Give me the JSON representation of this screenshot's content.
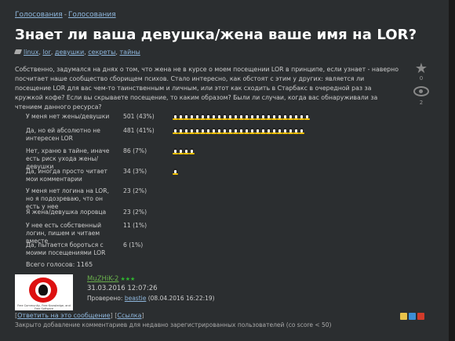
{
  "breadcrumb": {
    "first": "Голосования",
    "separator": "-",
    "second": "Голосования"
  },
  "title": "Знает ли ваша девушка/жена ваше имя на LOR?",
  "tags": [
    "linux",
    "lor",
    "девушки",
    "секреты",
    "тайны"
  ],
  "tag_separators": [
    ", ",
    ", ",
    ", ",
    ", "
  ],
  "body": "Собственно, задумался на днях о том, что жена не в курсе о моем посещении LOR в принципе, если узнает - наверно посчитает наше сообщество сборищем психов. Стало интересно, как обстоят с этим у других: является ли посещение LOR для вас чем-то таинственным и личным, или этот как сходить в Старбакс в очередной раз за кружкой кофе? Если вы скрываете посещение, то каким образом? Были ли случаи, когда вас обнаруживали за чтением данного ресурса?",
  "side": {
    "star_count": "0",
    "watch_count": "2"
  },
  "poll": {
    "rows": [
      {
        "label": "У меня нет жены/девушки",
        "count": "501 (43%)",
        "icons": 25
      },
      {
        "label": "Да, но ей абсолютно не интересен LOR",
        "count": "481 (41%)",
        "icons": 24
      },
      {
        "label": "Нет, храню в тайне, иначе есть риск ухода жены/девушки",
        "count": "86 (7%)",
        "icons": 4
      },
      {
        "label": "Да, иногда просто читает мои комментарии",
        "count": "34 (3%)",
        "icons": 1
      },
      {
        "label": "У меня нет логина на LOR, но я подозреваю, что он есть у нее",
        "count": "23 (2%)",
        "icons": 0
      },
      {
        "label": "Я жена/девушка лоровца",
        "count": "23 (2%)",
        "icons": 0
      },
      {
        "label": "У нее есть собственный логин, пишем и читаем вместе",
        "count": "11 (1%)",
        "icons": 0
      },
      {
        "label": "Да, пытается бороться с моими посещениями LOR",
        "count": "6 (1%)",
        "icons": 0
      }
    ],
    "total": "Всего голосов: 1165"
  },
  "comment": {
    "author": "MuZHiK-2",
    "stars": "★★★",
    "date": "31.03.2016 12:07:26",
    "approved_prefix": "Проверено:",
    "approved_by": "beastie",
    "approved_date": "(08.04.2016 16:22:19)",
    "avatar_caption": "Free Community, Free Knowledge, and Free Software"
  },
  "footer": {
    "bracket_open": "[",
    "reply_link": "Ответить на это сообщение",
    "bracket_mid": "] [",
    "link": "Ссылка",
    "bracket_close": "]",
    "closed": "Закрыто добавление комментариев для недавно зарегистрированных пользователей (со score < 50)"
  },
  "colors": {
    "accent_link": "#8fb7dd",
    "author": "#6ab04c",
    "background": "#2b2e30"
  }
}
